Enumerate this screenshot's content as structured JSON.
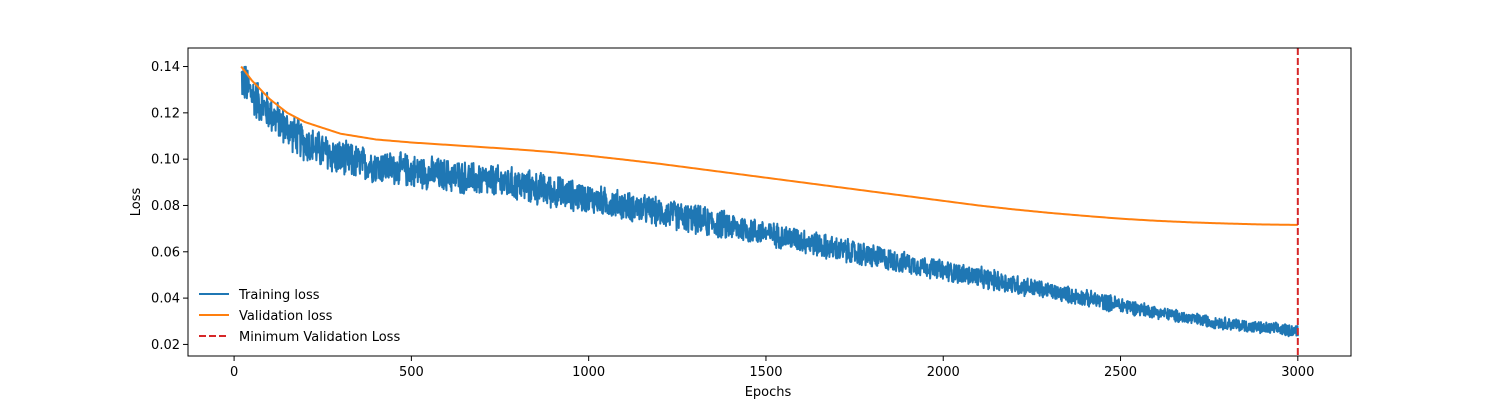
{
  "chart_data": {
    "type": "line",
    "title": "",
    "xlabel": "Epochs",
    "ylabel": "Loss",
    "xlim": [
      -130,
      3150
    ],
    "ylim": [
      0.015,
      0.148
    ],
    "x_ticks": [
      0,
      500,
      1000,
      1500,
      2000,
      2500,
      3000
    ],
    "x_tick_labels": [
      "0",
      "500",
      "1000",
      "1500",
      "2000",
      "2500",
      "3000"
    ],
    "y_ticks": [
      0.02,
      0.04,
      0.06,
      0.08,
      0.1,
      0.12,
      0.14
    ],
    "y_tick_labels": [
      "0.02",
      "0.04",
      "0.06",
      "0.08",
      "0.10",
      "0.12",
      "0.14"
    ],
    "grid": false,
    "legend_position": "lower-left",
    "series": [
      {
        "name": "Training loss",
        "color": "#1f77b4",
        "style": "noisy-line",
        "x": [
          20,
          50,
          100,
          150,
          200,
          300,
          400,
          500,
          600,
          700,
          800,
          900,
          1000,
          1100,
          1200,
          1300,
          1400,
          1500,
          1600,
          1700,
          1800,
          1900,
          2000,
          2100,
          2200,
          2300,
          2400,
          2500,
          2600,
          2700,
          2800,
          2900,
          3000
        ],
        "y": [
          0.135,
          0.128,
          0.12,
          0.113,
          0.107,
          0.1,
          0.097,
          0.095,
          0.093,
          0.091,
          0.089,
          0.086,
          0.083,
          0.08,
          0.077,
          0.074,
          0.071,
          0.068,
          0.065,
          0.061,
          0.058,
          0.055,
          0.052,
          0.049,
          0.046,
          0.043,
          0.04,
          0.037,
          0.034,
          0.031,
          0.029,
          0.027,
          0.026
        ],
        "noise_amplitude": [
          0.01,
          0.01,
          0.009,
          0.009,
          0.009,
          0.009,
          0.008,
          0.008,
          0.008,
          0.008,
          0.008,
          0.008,
          0.007,
          0.007,
          0.007,
          0.007,
          0.007,
          0.006,
          0.006,
          0.006,
          0.006,
          0.005,
          0.005,
          0.005,
          0.005,
          0.004,
          0.004,
          0.004,
          0.003,
          0.003,
          0.003,
          0.003,
          0.003
        ]
      },
      {
        "name": "Validation loss",
        "color": "#ff7f0e",
        "style": "line",
        "x": [
          20,
          50,
          100,
          150,
          200,
          300,
          400,
          500,
          600,
          700,
          800,
          900,
          1000,
          1100,
          1200,
          1300,
          1400,
          1500,
          1600,
          1700,
          1800,
          1900,
          2000,
          2100,
          2200,
          2300,
          2400,
          2500,
          2600,
          2700,
          2800,
          2900,
          3000
        ],
        "y": [
          0.14,
          0.134,
          0.126,
          0.12,
          0.116,
          0.111,
          0.1085,
          0.1072,
          0.1062,
          0.1052,
          0.1042,
          0.103,
          0.1015,
          0.0998,
          0.098,
          0.096,
          0.094,
          0.092,
          0.09,
          0.088,
          0.086,
          0.084,
          0.082,
          0.08,
          0.0783,
          0.0768,
          0.0755,
          0.0743,
          0.0734,
          0.0727,
          0.0722,
          0.0718,
          0.0716
        ]
      },
      {
        "name": "Minimum Validation Loss",
        "color": "#d62728",
        "style": "dashed-vertical",
        "x_value": 3000
      }
    ]
  }
}
